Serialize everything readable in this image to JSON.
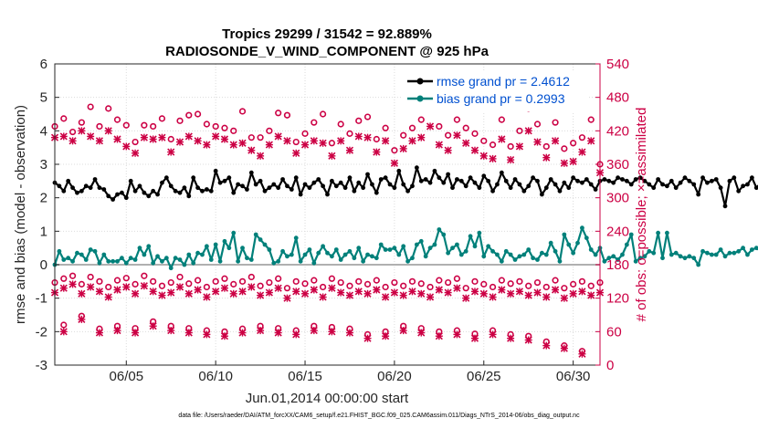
{
  "chart_data": {
    "type": "line",
    "title": "Tropics 29299 / 31542 = 92.889%",
    "subtitle": "RADIOSONDE_V_WIND_COMPONENT @ 925 hPa",
    "xlabel": "Jun.01,2014 00:00:00 start",
    "ylabel": "rmse and bias (model - observation)",
    "ylabel_right": "# of obs: o=possible; ×=assimilated",
    "xlim": [
      1,
      31.5
    ],
    "ylim": [
      -3,
      6
    ],
    "ylim_right": [
      0,
      540
    ],
    "x_ticks": [
      5,
      10,
      15,
      20,
      25,
      30
    ],
    "x_tick_labels": [
      "06/05",
      "06/10",
      "06/15",
      "06/20",
      "06/25",
      "06/30"
    ],
    "y_ticks": [
      -3,
      -2,
      -1,
      0,
      1,
      2,
      3,
      4,
      5,
      6
    ],
    "y_ticks_right": [
      0,
      60,
      120,
      180,
      240,
      300,
      360,
      420,
      480,
      540
    ],
    "grid": true,
    "legend_position": "top-right",
    "footnote": "data file: /Users/raeder/DAI/ATM_forcXX/CAM6_setup/f.e21.FHIST_BGC.f09_025.CAM6assim.011/Diags_NTrS_2014-06/obs_diag_output.nc",
    "colors": {
      "rmse": "#000000",
      "bias": "#00807a",
      "obs": "#cc0044",
      "zero": "#b0b0b0",
      "legend_text": "#0050d0"
    },
    "series": [
      {
        "name": "rmse grand pr = 2.4612",
        "axis": "left",
        "x_start": 1.0,
        "x_step": 0.25,
        "values": [
          2.45,
          2.35,
          2.2,
          2.5,
          2.3,
          2.15,
          2.2,
          2.35,
          2.3,
          2.55,
          2.3,
          2.25,
          2.05,
          1.95,
          2.1,
          2.15,
          2.0,
          2.5,
          2.2,
          2.35,
          2.15,
          2.05,
          2.2,
          2.1,
          2.45,
          2.6,
          2.35,
          2.2,
          2.15,
          2.3,
          2.05,
          2.6,
          2.3,
          2.2,
          2.25,
          2.2,
          2.8,
          2.45,
          2.5,
          2.6,
          2.15,
          2.4,
          2.35,
          2.25,
          2.75,
          2.4,
          2.5,
          2.2,
          2.3,
          2.4,
          2.3,
          2.55,
          2.35,
          2.25,
          2.6,
          2.1,
          2.4,
          2.3,
          2.45,
          2.55,
          2.35,
          2.1,
          2.5,
          2.35,
          2.45,
          2.3,
          2.6,
          2.2,
          2.45,
          2.3,
          2.7,
          2.4,
          2.15,
          2.55,
          2.6,
          2.4,
          2.3,
          2.8,
          2.4,
          2.2,
          2.35,
          2.9,
          2.5,
          2.55,
          2.45,
          2.8,
          2.6,
          2.45,
          2.7,
          2.3,
          2.55,
          2.5,
          2.35,
          2.6,
          2.45,
          2.3,
          2.65,
          2.5,
          2.2,
          2.4,
          2.75,
          2.5,
          2.3,
          2.55,
          2.4,
          2.2,
          2.35,
          2.6,
          2.5,
          2.1,
          2.3,
          2.55,
          2.4,
          2.2,
          2.45,
          2.3,
          2.6,
          2.5,
          2.45,
          2.55,
          2.4,
          2.25,
          2.5,
          2.55,
          2.5,
          2.45,
          2.6,
          2.55,
          2.5,
          2.4,
          2.55,
          2.6,
          2.5,
          2.4,
          2.3,
          2.55,
          2.4,
          2.35,
          2.5,
          2.3,
          2.45,
          2.6,
          2.5,
          2.4,
          2.1,
          2.6,
          2.45,
          2.5,
          2.55,
          2.3,
          1.75,
          2.5,
          2.6,
          2.2,
          2.35,
          2.4,
          2.6,
          2.3,
          2.45,
          2.4,
          2.5,
          2.55,
          2.35,
          2.6,
          2.45,
          2.65,
          2.4,
          2.3,
          2.5,
          2.2,
          2.35,
          2.15
        ]
      },
      {
        "name": "bias grand pr = 0.2993",
        "axis": "left",
        "x_start": 1.0,
        "x_step": 0.25,
        "values": [
          0.0,
          0.4,
          0.15,
          0.2,
          0.1,
          0.35,
          0.3,
          0.15,
          0.45,
          0.4,
          0.05,
          0.3,
          0.1,
          0.1,
          0.1,
          0.2,
          0.05,
          0.2,
          0.15,
          0.5,
          0.3,
          0.55,
          0.05,
          0.25,
          0.1,
          0.2,
          -0.1,
          0.2,
          0.15,
          0.0,
          0.3,
          0.05,
          0.35,
          0.3,
          0.55,
          0.15,
          0.6,
          0.1,
          0.7,
          0.5,
          0.95,
          0.1,
          0.5,
          0.2,
          0.15,
          0.9,
          0.75,
          0.6,
          0.45,
          0.05,
          0.1,
          0.4,
          0.25,
          0.3,
          0.8,
          0.1,
          0.3,
          0.45,
          0.05,
          0.35,
          0.55,
          0.35,
          0.25,
          0.45,
          0.15,
          0.3,
          0.4,
          0.2,
          0.5,
          0.1,
          0.3,
          0.25,
          0.2,
          0.6,
          0.45,
          0.45,
          0.5,
          0.3,
          0.55,
          0.1,
          0.2,
          0.6,
          0.7,
          0.25,
          0.5,
          0.6,
          1.05,
          0.9,
          0.35,
          0.5,
          0.6,
          0.3,
          0.4,
          0.85,
          0.55,
          0.95,
          0.25,
          0.55,
          0.4,
          0.3,
          0.1,
          0.4,
          0.3,
          0.15,
          0.25,
          0.3,
          0.45,
          0.2,
          0.15,
          0.35,
          0.3,
          0.65,
          0.4,
          0.1,
          0.9,
          0.6,
          0.35,
          0.65,
          1.1,
          0.8,
          0.45,
          0.3,
          0.5,
          0.1,
          0.2,
          0.25,
          0.15,
          0.3,
          0.6,
          0.9,
          0.1,
          0.2,
          0.25,
          0.4,
          0.35,
          0.95,
          0.2,
          0.95,
          0.3,
          0.35,
          0.25,
          0.2,
          0.25,
          0.2,
          0.0,
          0.4,
          0.35,
          0.3,
          0.3,
          0.45,
          0.25,
          0.35,
          0.35,
          0.4,
          0.5,
          0.3,
          0.45,
          0.5,
          0.4,
          0.6,
          0.9,
          0.5,
          0.3,
          0.55,
          1.75,
          0.5,
          0.25,
          0.6,
          0.45,
          0.55,
          1.3,
          0.75,
          0.35,
          0.65,
          0.65,
          0.65
        ]
      },
      {
        "name": "obs possible (upper)",
        "axis": "right",
        "marker": "o",
        "x_start": 1.0,
        "x_step": 0.5,
        "values": [
          428,
          442,
          418,
          435,
          463,
          428,
          460,
          440,
          430,
          400,
          430,
          428,
          442,
          405,
          438,
          448,
          450,
          432,
          428,
          425,
          420,
          455,
          408,
          408,
          420,
          452,
          448,
          400,
          415,
          435,
          450,
          398,
          432,
          415,
          438,
          445,
          405,
          425,
          385,
          412,
          425,
          440,
          468,
          428,
          412,
          440,
          425,
          415,
          402,
          395,
          440,
          392,
          420,
          460,
          432,
          392,
          435,
          388,
          398,
          408,
          440,
          360,
          455,
          408,
          405,
          392,
          402,
          380,
          410,
          398,
          400,
          445,
          380,
          398
        ]
      },
      {
        "name": "obs assimilated (upper)",
        "axis": "right",
        "marker": "x",
        "x_start": 1.0,
        "x_step": 0.5,
        "values": [
          408,
          410,
          402,
          420,
          410,
          402,
          420,
          405,
          392,
          380,
          408,
          405,
          408,
          382,
          400,
          410,
          402,
          395,
          410,
          405,
          395,
          398,
          385,
          375,
          395,
          410,
          402,
          380,
          395,
          402,
          398,
          375,
          402,
          385,
          410,
          408,
          382,
          402,
          362,
          388,
          402,
          408,
          428,
          395,
          385,
          412,
          398,
          385,
          375,
          370,
          405,
          368,
          392,
          420,
          400,
          372,
          402,
          362,
          365,
          382,
          402,
          345,
          420,
          375,
          378,
          368,
          378,
          358,
          378,
          365,
          372,
          402,
          350,
          370
        ]
      },
      {
        "name": "obs possible (lower)",
        "axis": "right",
        "marker": "o",
        "x_start": 1.0,
        "x_step": 0.5,
        "values": [
          148,
          155,
          160,
          145,
          158,
          150,
          140,
          152,
          156,
          145,
          160,
          150,
          142,
          148,
          158,
          146,
          152,
          140,
          150,
          155,
          145,
          150,
          158,
          142,
          148,
          155,
          138,
          150,
          146,
          152,
          140,
          155,
          148,
          142,
          150,
          145,
          152,
          140,
          148,
          142,
          150,
          146,
          140,
          152,
          148,
          155,
          138,
          150,
          145,
          140,
          152,
          146,
          150,
          142,
          148,
          140,
          152,
          138,
          145,
          150,
          142,
          148,
          138,
          150,
          146,
          140,
          148,
          142,
          152,
          145,
          148,
          140,
          135,
          146
        ]
      },
      {
        "name": "obs assimilated (lower)",
        "axis": "right",
        "marker": "x",
        "x_start": 1.0,
        "x_step": 0.5,
        "values": [
          130,
          138,
          145,
          128,
          140,
          132,
          122,
          135,
          140,
          128,
          142,
          132,
          125,
          130,
          140,
          128,
          135,
          122,
          132,
          138,
          128,
          132,
          140,
          125,
          130,
          138,
          120,
          132,
          128,
          135,
          122,
          138,
          130,
          125,
          132,
          128,
          135,
          122,
          130,
          125,
          132,
          128,
          122,
          135,
          130,
          138,
          120,
          132,
          128,
          122,
          135,
          128,
          132,
          125,
          130,
          122,
          135,
          120,
          128,
          132,
          125,
          130,
          120,
          132,
          128,
          122,
          130,
          125,
          135,
          128,
          130,
          122,
          118,
          128
        ]
      },
      {
        "name": "obs possible (lowest)",
        "axis": "right",
        "marker": "o",
        "x_start": 1.5,
        "x_step": 1.0,
        "values": [
          72,
          88,
          65,
          70,
          66,
          78,
          70,
          66,
          62,
          60,
          65,
          70,
          66,
          62,
          70,
          68,
          65,
          55,
          60,
          70,
          66,
          60,
          62,
          56,
          62,
          55,
          52,
          42,
          35,
          25
        ]
      },
      {
        "name": "obs assimilated (lowest)",
        "axis": "right",
        "marker": "x",
        "x_start": 1.5,
        "x_step": 1.0,
        "values": [
          60,
          82,
          58,
          62,
          58,
          70,
          62,
          58,
          55,
          52,
          58,
          62,
          58,
          55,
          62,
          60,
          58,
          48,
          52,
          62,
          58,
          52,
          55,
          48,
          55,
          48,
          45,
          35,
          30,
          20
        ]
      }
    ]
  }
}
